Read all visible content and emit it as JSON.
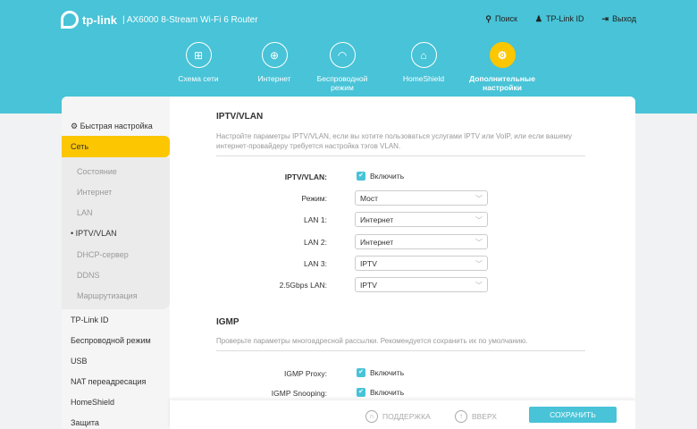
{
  "header": {
    "brand": "tp-link",
    "model": "AX6000 8-Stream Wi-Fi 6 Router",
    "links": [
      {
        "icon": "search-icon",
        "label": "Поиск"
      },
      {
        "icon": "user-icon",
        "label": "TP-Link ID"
      },
      {
        "icon": "logout-icon",
        "label": "Выход"
      }
    ]
  },
  "nav": [
    {
      "icon": "network-map-icon",
      "label": "Схема сети"
    },
    {
      "icon": "globe-icon",
      "label": "Интернет"
    },
    {
      "icon": "wifi-icon",
      "label": "Беспроводной режим"
    },
    {
      "icon": "homeshield-icon",
      "label": "HomeShield"
    },
    {
      "icon": "gear-icon",
      "label": "Дополнительные настройки",
      "active": true
    }
  ],
  "sidebar": {
    "quick": "Быстрая настройка",
    "network": "Сеть",
    "sub": [
      "Состояние",
      "Интернет",
      "LAN",
      "IPTV/VLAN",
      "DHCP-сервер",
      "DDNS",
      "Маршрутизация"
    ],
    "items": [
      "TP-Link ID",
      "Беспроводной режим",
      "USB",
      "NAT переадресация",
      "HomeShield",
      "Защита"
    ]
  },
  "iptv": {
    "title": "IPTV/VLAN",
    "desc": "Настройте параметры IPTV/VLAN, если вы хотите пользоваться услугами IPTV или VoIP, или если вашему интернет-провайдеру требуется настройка тэгов VLAN.",
    "enable_label": "IPTV/VLAN:",
    "enable_text": "Включить",
    "enabled": true,
    "fields": [
      {
        "label": "Режим:",
        "value": "Мост"
      },
      {
        "label": "LAN 1:",
        "value": "Интернет"
      },
      {
        "label": "LAN 2:",
        "value": "Интернет"
      },
      {
        "label": "LAN 3:",
        "value": "IPTV"
      },
      {
        "label": "2.5Gbps LAN:",
        "value": "IPTV"
      }
    ]
  },
  "igmp": {
    "title": "IGMP",
    "desc": "Проверьте параметры многоадресной рассылки. Рекомендуется сохранить их по умолчанию.",
    "proxy_label": "IGMP Proxy:",
    "snooping_label": "IGMP Snooping:",
    "enable_text": "Включить",
    "proxy": true,
    "snooping": true
  },
  "footer": {
    "support": "ПОДДЕРЖКА",
    "top": "ВВЕРХ",
    "save": "СОХРАНИТЬ"
  },
  "colors": {
    "accent": "#48c3d7",
    "active": "#fcc600"
  }
}
